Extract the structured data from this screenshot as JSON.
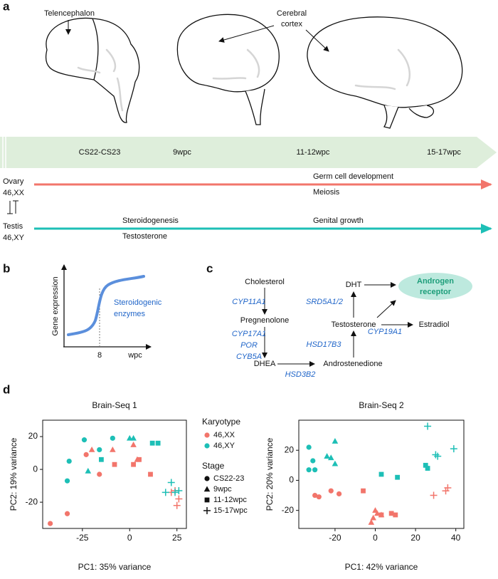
{
  "panel_labels": [
    "a",
    "b",
    "c",
    "d"
  ],
  "panel_a": {
    "telencephalon": "Telencephalon",
    "cerebral_cortex": [
      "Cerebral",
      "cortex"
    ],
    "stages": [
      "CS22-CS23",
      "9wpc",
      "11-12wpc",
      "15-17wpc"
    ],
    "ovary": [
      "Ovary",
      "46,XX"
    ],
    "testis": [
      "Testis",
      "46,XY"
    ],
    "ovary_events": [
      "Germ cell development",
      "Meiosis"
    ],
    "testis_events": [
      "Steroidogenesis",
      "Testosterone",
      "Genital growth"
    ]
  },
  "panel_b": {
    "y_label": "Gene expression",
    "x_tick": "8",
    "x_label": "wpc",
    "curve_label": [
      "Steroidogenic",
      "enzymes"
    ]
  },
  "panel_c": {
    "nodes": [
      "Cholesterol",
      "Pregnenolone",
      "DHEA",
      "Androstenedione",
      "Testosterone",
      "DHT",
      "Estradiol"
    ],
    "receptor": [
      "Androgen",
      "receptor"
    ],
    "enzymes": [
      "CYP11A1",
      "CYP17A1",
      "POR",
      "CYB5A",
      "HSD3B2",
      "HSD17B3",
      "SRD5A1/2",
      "CYP19A1"
    ]
  },
  "panel_d_legend": {
    "karyotype_title": "Karyotype",
    "karyotypes": [
      {
        "label": "46,XX",
        "color": "#f2756b"
      },
      {
        "label": "46,XY",
        "color": "#1dbfb6"
      }
    ],
    "stage_title": "Stage",
    "stages": [
      {
        "label": "CS22-23",
        "shape": "circle"
      },
      {
        "label": "9wpc",
        "shape": "triangle"
      },
      {
        "label": "11-12wpc",
        "shape": "square"
      },
      {
        "label": "15-17wpc",
        "shape": "cross"
      }
    ]
  },
  "chart_data": [
    {
      "type": "scatter",
      "title": "Brain-Seq 1",
      "x_label": "PC1: 35% variance",
      "y_label": "PC2: 19% variance",
      "xlim": [
        -46,
        30
      ],
      "ylim": [
        -36,
        30
      ],
      "xticks": [
        -25,
        0,
        25
      ],
      "yticks": [
        -20,
        0,
        20
      ],
      "series": [
        {
          "color": "#f2756b",
          "shape": "circle",
          "x": [
            -42,
            -33,
            -23,
            -16
          ],
          "y": [
            -33,
            -27,
            9,
            -3
          ]
        },
        {
          "color": "#1dbfb6",
          "shape": "circle",
          "x": [
            -32,
            -33,
            -24,
            -16,
            -9
          ],
          "y": [
            5,
            -7,
            18,
            12,
            19
          ]
        },
        {
          "color": "#f2756b",
          "shape": "triangle",
          "x": [
            -20,
            -9,
            2,
            4
          ],
          "y": [
            12,
            12,
            15,
            6
          ]
        },
        {
          "color": "#1dbfb6",
          "shape": "triangle",
          "x": [
            -22,
            0,
            2
          ],
          "y": [
            -1,
            19,
            19
          ]
        },
        {
          "color": "#f2756b",
          "shape": "square",
          "x": [
            -8,
            2,
            5,
            11
          ],
          "y": [
            3,
            3,
            6,
            -3
          ]
        },
        {
          "color": "#1dbfb6",
          "shape": "square",
          "x": [
            -15,
            12,
            15
          ],
          "y": [
            6,
            16,
            16
          ]
        },
        {
          "color": "#f2756b",
          "shape": "cross",
          "x": [
            24,
            26,
            25,
            22
          ],
          "y": [
            -13,
            -18,
            -22,
            -14
          ]
        },
        {
          "color": "#1dbfb6",
          "shape": "cross",
          "x": [
            22,
            19,
            24,
            26
          ],
          "y": [
            -8,
            -14,
            -14,
            -13
          ]
        }
      ]
    },
    {
      "type": "scatter",
      "title": "Brain-Seq 2",
      "x_label": "PC1: 42% variance",
      "y_label": "PC2: 20% variance",
      "xlim": [
        -38,
        44
      ],
      "ylim": [
        -32,
        40
      ],
      "xticks": [
        -20,
        0,
        20,
        40
      ],
      "yticks": [
        -20,
        0,
        20
      ],
      "series": [
        {
          "color": "#f2756b",
          "shape": "circle",
          "x": [
            -30,
            -28,
            -22,
            -18
          ],
          "y": [
            -10,
            -11,
            -7,
            -9
          ]
        },
        {
          "color": "#1dbfb6",
          "shape": "circle",
          "x": [
            -33,
            -31,
            -33,
            -30
          ],
          "y": [
            22,
            13,
            7,
            7
          ]
        },
        {
          "color": "#f2756b",
          "shape": "triangle",
          "x": [
            0,
            1,
            -1,
            -2,
            3
          ],
          "y": [
            -20,
            -22,
            -25,
            -28,
            -23
          ]
        },
        {
          "color": "#1dbfb6",
          "shape": "triangle",
          "x": [
            -20,
            -24,
            -22,
            -20
          ],
          "y": [
            26,
            16,
            15,
            11
          ]
        },
        {
          "color": "#f2756b",
          "shape": "square",
          "x": [
            -6,
            3,
            8,
            10
          ],
          "y": [
            -7,
            -23,
            -22,
            -23
          ]
        },
        {
          "color": "#1dbfb6",
          "shape": "square",
          "x": [
            3,
            11,
            25,
            26
          ],
          "y": [
            4,
            2,
            10,
            8
          ]
        },
        {
          "color": "#f2756b",
          "shape": "cross",
          "x": [
            36,
            35,
            29
          ],
          "y": [
            -5,
            -7,
            -10
          ]
        },
        {
          "color": "#1dbfb6",
          "shape": "cross",
          "x": [
            26,
            30,
            31,
            39
          ],
          "y": [
            36,
            17,
            16,
            21
          ]
        }
      ]
    }
  ]
}
